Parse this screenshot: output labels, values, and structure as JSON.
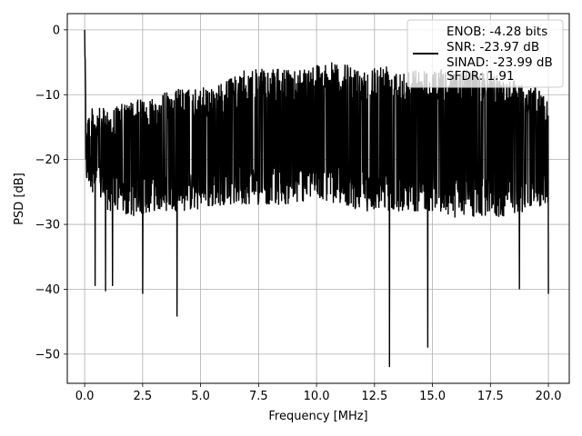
{
  "chart_data": {
    "type": "line",
    "title": "",
    "xlabel": "Frequency [MHz]",
    "ylabel": "PSD [dB]",
    "xlim": [
      -0.75,
      20.9
    ],
    "ylim": [
      -54.5,
      2.5
    ],
    "xticks": [
      0.0,
      2.5,
      5.0,
      7.5,
      10.0,
      12.5,
      15.0,
      17.5,
      20.0
    ],
    "xtick_labels": [
      "0.0",
      "2.5",
      "5.0",
      "7.5",
      "10.0",
      "12.5",
      "15.0",
      "17.5",
      "20.0"
    ],
    "yticks": [
      0,
      -10,
      -20,
      -30,
      -40,
      -50
    ],
    "ytick_labels": [
      "0",
      "−10",
      "−20",
      "−30",
      "−40",
      "−50"
    ],
    "grid": true,
    "legend_position": "top-right",
    "legend": {
      "lines": [
        "ENOB: -4.28 bits",
        "SNR: -23.97 dB",
        "SINAD: -23.99 dB",
        "SFDR: 1.91"
      ]
    },
    "series": [
      {
        "color": "#000000",
        "x_range": [
          0,
          20
        ],
        "peak": {
          "x": 0.0,
          "y": 0.0
        },
        "upper_envelope": [
          [
            0.1,
            -12
          ],
          [
            1,
            -12
          ],
          [
            2,
            -11
          ],
          [
            3,
            -10
          ],
          [
            4,
            -9
          ],
          [
            5,
            -9
          ],
          [
            6,
            -8
          ],
          [
            7,
            -6
          ],
          [
            8,
            -6
          ],
          [
            9,
            -6
          ],
          [
            10,
            -5
          ],
          [
            11,
            -5
          ],
          [
            12,
            -6
          ],
          [
            13,
            -5
          ],
          [
            14,
            -6
          ],
          [
            15,
            -6
          ],
          [
            16,
            -6
          ],
          [
            17,
            -6
          ],
          [
            18,
            -7
          ],
          [
            19,
            -8
          ],
          [
            20,
            -10
          ]
        ],
        "lower_envelope": [
          [
            0.1,
            -24
          ],
          [
            1,
            -28
          ],
          [
            2,
            -29
          ],
          [
            3,
            -28
          ],
          [
            4,
            -28
          ],
          [
            5,
            -28
          ],
          [
            6,
            -27
          ],
          [
            7,
            -27
          ],
          [
            8,
            -27
          ],
          [
            9,
            -27
          ],
          [
            10,
            -26
          ],
          [
            11,
            -27
          ],
          [
            12,
            -28
          ],
          [
            13,
            -28
          ],
          [
            14,
            -28
          ],
          [
            15,
            -28
          ],
          [
            16,
            -29
          ],
          [
            17,
            -29
          ],
          [
            18,
            -29
          ],
          [
            19,
            -28
          ],
          [
            20,
            -27
          ]
        ],
        "deep_minima": [
          [
            0.45,
            -39.5
          ],
          [
            0.9,
            -40.3
          ],
          [
            1.2,
            -39.5
          ],
          [
            2.5,
            -40.7
          ],
          [
            3.98,
            -44.2
          ],
          [
            13.15,
            -52.0
          ],
          [
            14.8,
            -49.0
          ],
          [
            18.75,
            -40.0
          ],
          [
            20.0,
            -40.7
          ]
        ],
        "samples": 2000
      }
    ]
  }
}
